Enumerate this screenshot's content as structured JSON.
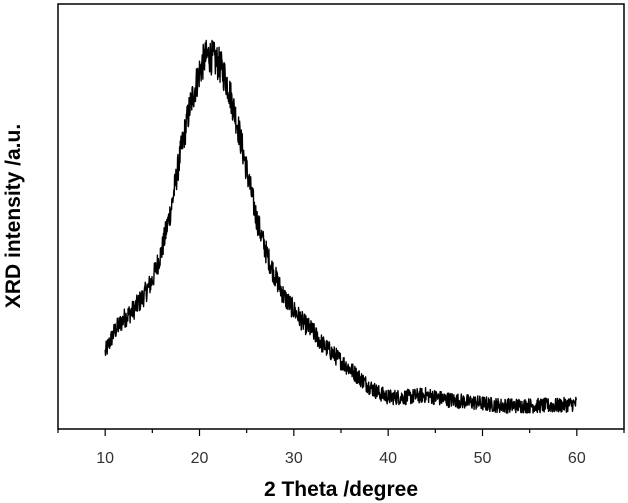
{
  "chart_data": {
    "type": "line",
    "title": "",
    "xlabel": "2 Theta /degree",
    "ylabel": "XRD intensity /a.u.",
    "xlim": [
      5,
      65
    ],
    "ylim": [
      0,
      100
    ],
    "x_ticks": [
      "10",
      "20",
      "30",
      "40",
      "50",
      "60"
    ],
    "y_ticks_visible": false,
    "grid": false,
    "legend": "none",
    "series": [
      {
        "color": "#000000",
        "noisy": true,
        "x": [
          10,
          11,
          12,
          13,
          14,
          15,
          16,
          17,
          18,
          19,
          20,
          20.5,
          21,
          21.5,
          22,
          22.5,
          23,
          24,
          25,
          26,
          27,
          28,
          29,
          30,
          31,
          32,
          33,
          34,
          35,
          36,
          37,
          38,
          39,
          40,
          42,
          44,
          46,
          48,
          50,
          52,
          54,
          56,
          58,
          60
        ],
        "y": [
          18,
          23,
          26,
          28,
          31,
          35,
          42,
          52,
          65,
          76,
          84,
          87,
          88,
          87,
          86,
          84,
          81,
          72,
          61,
          50,
          42,
          36,
          31,
          28,
          25,
          23,
          20,
          18,
          16,
          14,
          12,
          10,
          8.5,
          7.5,
          7.5,
          8,
          7,
          6.5,
          6,
          5.5,
          5.5,
          5.5,
          5.5,
          6
        ]
      }
    ]
  }
}
